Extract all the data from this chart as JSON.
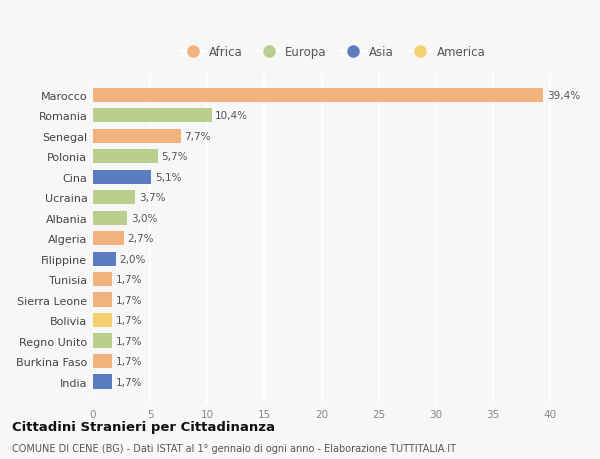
{
  "countries": [
    "India",
    "Burkina Faso",
    "Regno Unito",
    "Bolivia",
    "Sierra Leone",
    "Tunisia",
    "Filippine",
    "Algeria",
    "Albania",
    "Ucraina",
    "Cina",
    "Polonia",
    "Senegal",
    "Romania",
    "Marocco"
  ],
  "values": [
    1.7,
    1.7,
    1.7,
    1.7,
    1.7,
    1.7,
    2.0,
    2.7,
    3.0,
    3.7,
    5.1,
    5.7,
    7.7,
    10.4,
    39.4
  ],
  "labels": [
    "1,7%",
    "1,7%",
    "1,7%",
    "1,7%",
    "1,7%",
    "1,7%",
    "2,0%",
    "2,7%",
    "3,0%",
    "3,7%",
    "5,1%",
    "5,7%",
    "7,7%",
    "10,4%",
    "39,4%"
  ],
  "continents": [
    "Asia",
    "Africa",
    "Europa",
    "America",
    "Africa",
    "Africa",
    "Asia",
    "Africa",
    "Europa",
    "Europa",
    "Asia",
    "Europa",
    "Africa",
    "Europa",
    "Africa"
  ],
  "continent_colors": {
    "Africa": "#F2B27E",
    "Europa": "#BACF8E",
    "Asia": "#5B7DC0",
    "America": "#F5D070"
  },
  "legend_order": [
    "Africa",
    "Europa",
    "Asia",
    "America"
  ],
  "title": "Cittadini Stranieri per Cittadinanza",
  "subtitle": "COMUNE DI CENE (BG) - Dati ISTAT al 1° gennaio di ogni anno - Elaborazione TUTTITALIA.IT",
  "xlim": [
    0,
    42
  ],
  "xticks": [
    0,
    5,
    10,
    15,
    20,
    25,
    30,
    35,
    40
  ],
  "background_color": "#f7f7f7",
  "grid_color": "#ffffff",
  "bar_height": 0.7
}
